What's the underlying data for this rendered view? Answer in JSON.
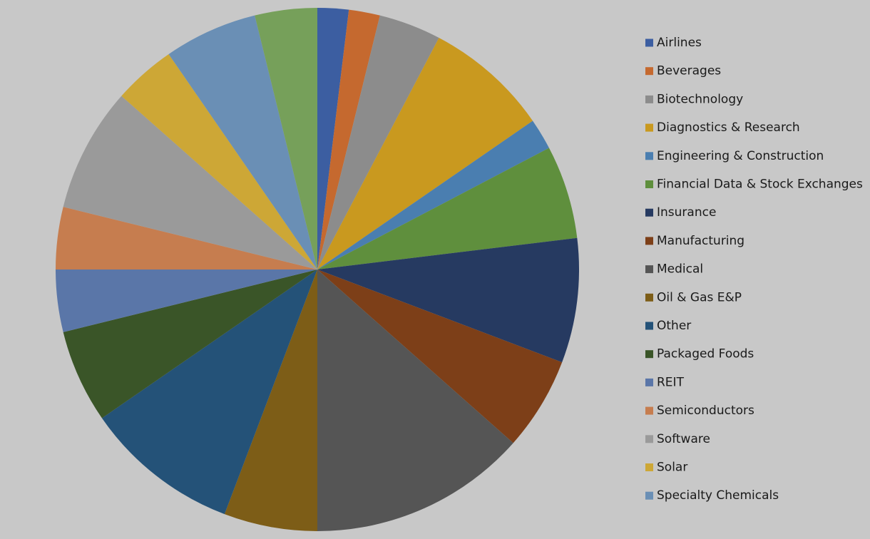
{
  "chart_data": {
    "type": "pie",
    "categories": [
      "Airlines",
      "Beverages",
      "Biotechnology",
      "Diagnostics & Research",
      "Engineering & Construction",
      "Financial Data & Stock Exchanges",
      "Insurance",
      "Manufacturing",
      "Medical",
      "Oil & Gas E&P",
      "Other",
      "Packaged Foods",
      "REIT",
      "Semiconductors",
      "Software",
      "Solar",
      "Specialty Chemicals",
      null
    ],
    "values": [
      2,
      2,
      4,
      8,
      2,
      6,
      8,
      6,
      14,
      6,
      10,
      6,
      4,
      4,
      8,
      4,
      6,
      4
    ],
    "colors": [
      "#3c5ea1",
      "#c5692f",
      "#8c8c8c",
      "#c9991f",
      "#4a7eb0",
      "#5f8f3d",
      "#263a61",
      "#7d3f18",
      "#555555",
      "#7d5d17",
      "#245278",
      "#3a5528",
      "#5a76a8",
      "#c67d4f",
      "#9a9a9a",
      "#cda736",
      "#6a8fb5",
      "#76a05a"
    ],
    "legend": "right"
  }
}
